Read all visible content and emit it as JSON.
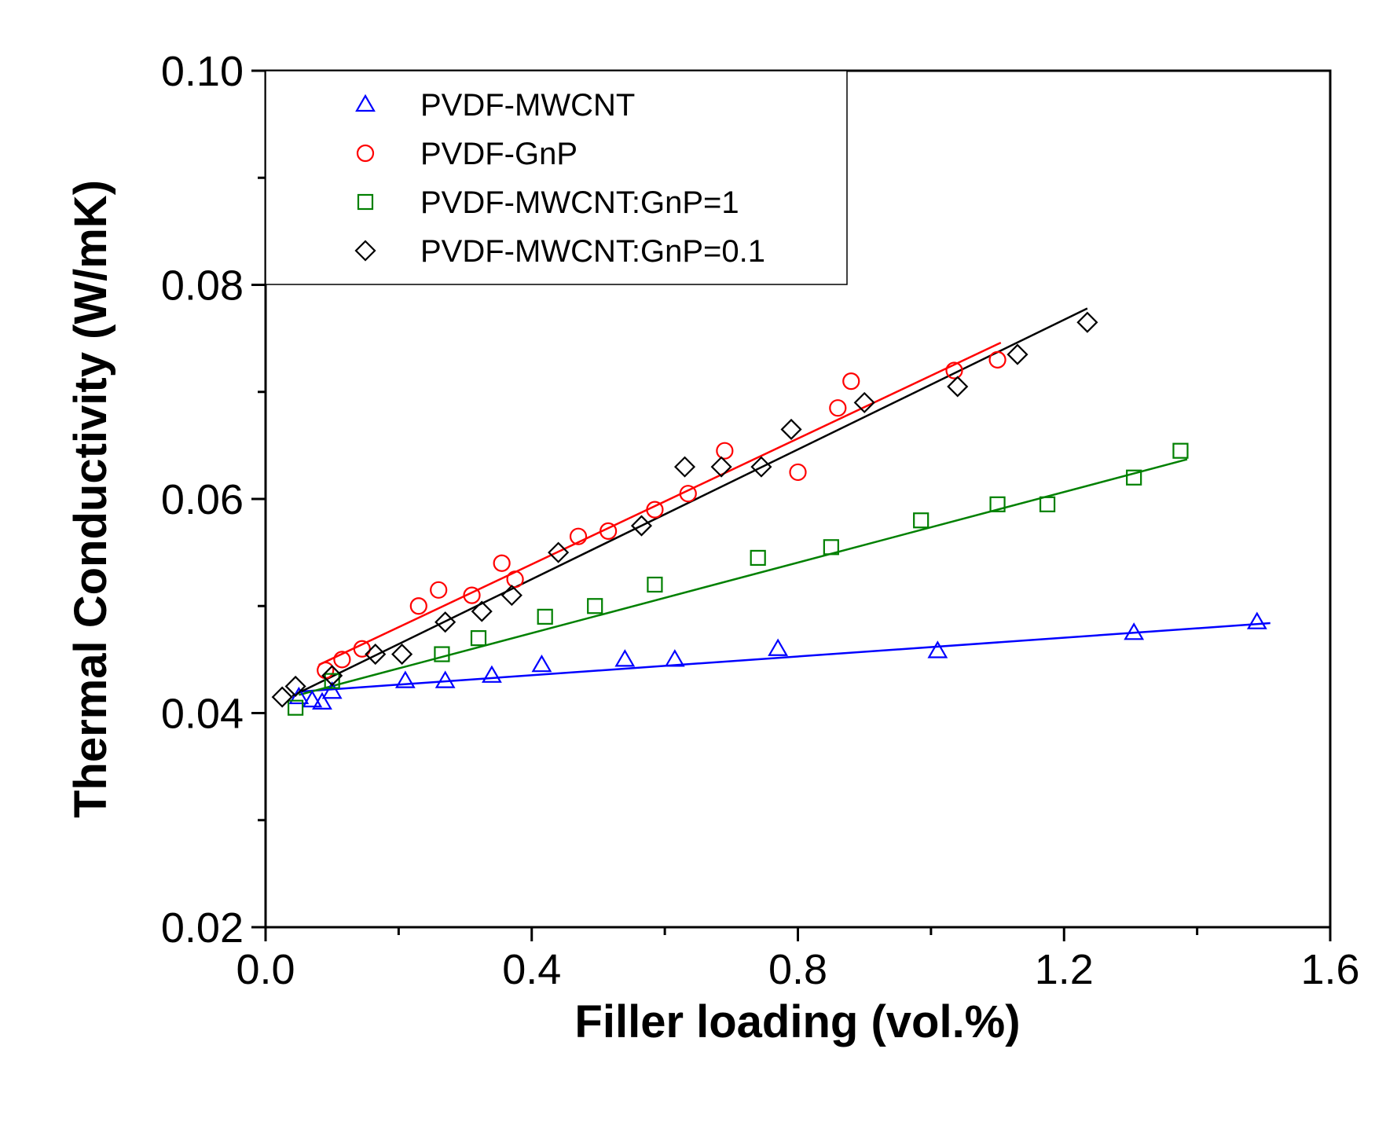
{
  "chart_data": {
    "type": "scatter",
    "xlabel": "Filler loading (vol.%)",
    "ylabel": "Thermal Conductivity (W/mK)",
    "xlim": [
      0.0,
      1.6
    ],
    "ylim": [
      0.02,
      0.1
    ],
    "xticks": [
      "0.0",
      "0.4",
      "0.8",
      "1.2",
      "1.6"
    ],
    "yticks": [
      "0.02",
      "0.04",
      "0.06",
      "0.08",
      "0.10"
    ],
    "grid": false,
    "legend_position": "top-left",
    "series": [
      {
        "name": "PVDF-MWCNT",
        "marker": "triangle",
        "color": "#0000ff",
        "x": [
          0.05,
          0.07,
          0.085,
          0.1,
          0.21,
          0.27,
          0.34,
          0.415,
          0.54,
          0.615,
          0.77,
          1.01,
          1.305,
          1.49
        ],
        "y": [
          0.0415,
          0.0412,
          0.041,
          0.042,
          0.043,
          0.043,
          0.0435,
          0.0445,
          0.045,
          0.045,
          0.046,
          0.0458,
          0.0475,
          0.0485
        ],
        "fit": [
          [
            0.05,
            0.042
          ],
          [
            1.51,
            0.0484
          ]
        ]
      },
      {
        "name": "PVDF-GnP",
        "marker": "circle",
        "color": "#ff0000",
        "x": [
          0.09,
          0.115,
          0.145,
          0.23,
          0.26,
          0.31,
          0.355,
          0.375,
          0.47,
          0.515,
          0.585,
          0.635,
          0.69,
          0.8,
          0.86,
          0.88,
          1.035,
          1.1
        ],
        "y": [
          0.044,
          0.045,
          0.046,
          0.05,
          0.0515,
          0.051,
          0.054,
          0.0525,
          0.0565,
          0.057,
          0.059,
          0.0605,
          0.0645,
          0.0625,
          0.0685,
          0.071,
          0.072,
          0.073
        ],
        "fit": [
          [
            0.08,
            0.0445
          ],
          [
            1.105,
            0.0746
          ]
        ]
      },
      {
        "name": "PVDF-MWCNT:GnP=1",
        "marker": "square",
        "color": "#008000",
        "x": [
          0.045,
          0.1,
          0.265,
          0.32,
          0.42,
          0.495,
          0.585,
          0.74,
          0.85,
          0.985,
          1.1,
          1.175,
          1.305,
          1.375
        ],
        "y": [
          0.0405,
          0.043,
          0.0455,
          0.047,
          0.049,
          0.05,
          0.052,
          0.0545,
          0.0555,
          0.058,
          0.0595,
          0.0595,
          0.062,
          0.0645
        ],
        "fit": [
          [
            0.05,
            0.0417
          ],
          [
            1.385,
            0.0637
          ]
        ]
      },
      {
        "name": "PVDF-MWCNT:GnP=0.1",
        "marker": "diamond",
        "color": "#000000",
        "x": [
          0.025,
          0.045,
          0.1,
          0.165,
          0.205,
          0.27,
          0.325,
          0.37,
          0.44,
          0.565,
          0.63,
          0.685,
          0.745,
          0.79,
          0.9,
          1.04,
          1.13,
          1.235
        ],
        "y": [
          0.0415,
          0.0425,
          0.0435,
          0.0455,
          0.0455,
          0.0485,
          0.0495,
          0.051,
          0.055,
          0.0575,
          0.063,
          0.063,
          0.063,
          0.0665,
          0.069,
          0.0705,
          0.0735,
          0.0765
        ],
        "fit": [
          [
            0.04,
            0.0416
          ],
          [
            1.235,
            0.0778
          ]
        ]
      }
    ]
  }
}
